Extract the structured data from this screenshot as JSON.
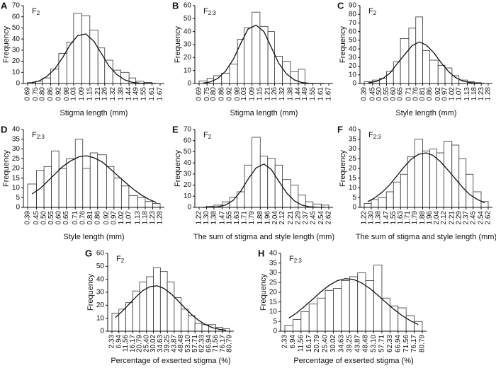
{
  "chart_data": [
    {
      "type": "histogram",
      "panel": "A",
      "subtitle": {
        "base": "F",
        "sub": "2"
      },
      "xlabel": "Stigma length (mm)",
      "ylabel": "Frequency",
      "bins": [
        0.69,
        0.75,
        {
          "value": 0.8,
          "label": "0.80"
        },
        0.86,
        0.92,
        0.98,
        1.03,
        1.09,
        1.15,
        1.21,
        1.26,
        1.32,
        1.38,
        1.44,
        1.49,
        1.55,
        1.61,
        1.67
      ],
      "counts": [
        1,
        2,
        5,
        13,
        27,
        37,
        63,
        61,
        48,
        32,
        21,
        12,
        10,
        5,
        2,
        1,
        0
      ],
      "curve": [
        0.8,
        2.3,
        6.1,
        13,
        23.5,
        35,
        43,
        44.6,
        38,
        27,
        16,
        8,
        3.2,
        1,
        0.3,
        0.1,
        0
      ],
      "ylim": [
        0,
        70
      ],
      "yticks": [
        0,
        10,
        20,
        30,
        40,
        50,
        60,
        70
      ],
      "bar_color": "#ffffff",
      "edge_color": "#333333",
      "line_color": "#111111"
    },
    {
      "type": "histogram",
      "panel": "B",
      "subtitle": {
        "base": "F",
        "sub": "2:3"
      },
      "xlabel": "Stigma length (mm)",
      "ylabel": "Frequency",
      "bins": [
        0.69,
        0.75,
        {
          "value": 0.8,
          "label": "0.80"
        },
        0.86,
        0.92,
        0.98,
        1.03,
        1.09,
        1.15,
        1.21,
        1.26,
        1.32,
        1.38,
        1.44,
        1.49,
        1.55,
        1.61,
        1.67
      ],
      "counts": [
        2,
        4,
        6,
        8,
        15,
        34,
        43,
        55,
        44,
        40,
        21,
        17,
        9,
        11,
        0,
        0,
        0
      ],
      "curve": [
        0.3,
        1.2,
        3.8,
        9.5,
        19,
        31,
        42,
        45,
        40,
        28,
        16,
        7.5,
        2.8,
        0.8,
        0.2,
        0,
        0
      ],
      "ylim": [
        0,
        60
      ],
      "yticks": [
        0,
        10,
        20,
        30,
        40,
        50,
        60
      ],
      "bar_color": "#ffffff",
      "edge_color": "#333333",
      "line_color": "#111111"
    },
    {
      "type": "histogram",
      "panel": "C",
      "subtitle": {
        "base": "F",
        "sub": "2"
      },
      "xlabel": "Style length (mm)",
      "ylabel": "Frequency",
      "bins": [
        0.39,
        0.45,
        {
          "value": 0.5,
          "label": "0.50"
        },
        0.55,
        {
          "value": 0.6,
          "label": "0.60"
        },
        0.65,
        0.71,
        0.76,
        0.81,
        0.86,
        0.92,
        0.97,
        1.02,
        1.07,
        1.13,
        1.18,
        1.23,
        1.28
      ],
      "counts": [
        2,
        4,
        6,
        14,
        25,
        52,
        64,
        77,
        38,
        27,
        21,
        18,
        9,
        4,
        2,
        1,
        0
      ],
      "curve": [
        0.8,
        2.3,
        5.9,
        12,
        22.5,
        33.4,
        43.9,
        48,
        44.6,
        35.5,
        23.5,
        13.8,
        7,
        2.8,
        1,
        0.3,
        0.1
      ],
      "ylim": [
        0,
        90
      ],
      "yticks": [
        0,
        10,
        20,
        30,
        40,
        50,
        60,
        70,
        80,
        90
      ],
      "bar_color": "#ffffff",
      "edge_color": "#333333",
      "line_color": "#111111"
    },
    {
      "type": "histogram",
      "panel": "D",
      "subtitle": {
        "base": "F",
        "sub": "2:3"
      },
      "xlabel": "Style length (mm)",
      "ylabel": "Frequency",
      "bins": [
        0.39,
        0.45,
        {
          "value": 0.5,
          "label": "0.50"
        },
        0.55,
        {
          "value": 0.6,
          "label": "0.60"
        },
        0.65,
        0.71,
        0.76,
        0.81,
        0.86,
        0.92,
        0.97,
        1.02,
        1.07,
        1.13,
        1.18,
        1.23,
        1.28
      ],
      "counts": [
        12,
        19,
        21,
        29,
        20,
        25,
        35,
        20,
        28,
        27,
        21,
        15,
        11,
        6,
        5,
        3,
        2
      ],
      "curve": [
        6.9,
        9.8,
        13.5,
        17.2,
        21,
        23.9,
        26,
        26.5,
        25.5,
        23.4,
        19.8,
        16.3,
        12.9,
        9.3,
        6.3,
        4.1,
        2.5
      ],
      "ylim": [
        0,
        40
      ],
      "yticks": [
        0,
        5,
        10,
        15,
        20,
        25,
        30,
        35,
        40
      ],
      "bar_color": "#ffffff",
      "edge_color": "#333333",
      "line_color": "#111111"
    },
    {
      "type": "histogram",
      "panel": "E",
      "subtitle": {
        "base": "F",
        "sub": "2"
      },
      "xlabel": "The sum of stigma and style length (mm)",
      "ylabel": "Frequency",
      "bins": [
        1.22,
        {
          "value": 1.3,
          "label": "1.30"
        },
        1.38,
        1.47,
        1.55,
        1.63,
        1.71,
        1.79,
        1.88,
        1.96,
        2.04,
        2.12,
        2.21,
        2.29,
        2.37,
        2.45,
        2.54,
        2.62
      ],
      "counts": [
        0,
        1,
        2,
        5,
        9,
        14,
        38,
        63,
        46,
        44,
        38,
        25,
        20,
        11,
        5,
        3,
        2
      ],
      "curve": [
        0,
        0.1,
        0.6,
        2.2,
        6.4,
        14.6,
        25.5,
        35.5,
        39,
        34,
        23.6,
        13,
        5.7,
        2,
        0.6,
        0.1,
        0
      ],
      "ylim": [
        0,
        70
      ],
      "yticks": [
        0,
        10,
        20,
        30,
        40,
        50,
        60,
        70
      ],
      "bar_color": "#ffffff",
      "edge_color": "#333333",
      "line_color": "#111111"
    },
    {
      "type": "histogram",
      "panel": "F",
      "subtitle": {
        "base": "F",
        "sub": "2:3"
      },
      "xlabel": "The sum of stigma and style length (mm)",
      "ylabel": "Frequency",
      "bins": [
        1.22,
        {
          "value": 1.3,
          "label": "1.30"
        },
        1.38,
        1.47,
        1.55,
        1.63,
        1.71,
        1.79,
        1.88,
        1.96,
        2.04,
        2.12,
        2.21,
        2.29,
        2.37,
        2.45,
        2.54,
        2.62
      ],
      "counts": [
        2,
        4,
        5,
        8,
        13,
        17,
        26,
        35,
        29,
        30,
        28,
        34,
        32,
        25,
        17,
        8,
        3
      ],
      "curve": [
        2.9,
        4.9,
        7.9,
        11.7,
        16.2,
        20.8,
        24.7,
        27.3,
        28,
        26.6,
        23.5,
        19.2,
        14.6,
        10.3,
        6.6,
        4.1,
        2.3
      ],
      "ylim": [
        0,
        40
      ],
      "yticks": [
        0,
        5,
        10,
        15,
        20,
        25,
        30,
        35,
        40
      ],
      "bar_color": "#ffffff",
      "edge_color": "#333333",
      "line_color": "#111111"
    },
    {
      "type": "histogram",
      "panel": "G",
      "subtitle": {
        "base": "F",
        "sub": "2"
      },
      "xlabel": "Percentage of exserted stigma (%)",
      "ylabel": "Frequency",
      "bins": [
        2.33,
        6.94,
        11.56,
        16.17,
        20.79,
        {
          "value": 25.4,
          "label": "25.40"
        },
        30.02,
        34.63,
        39.25,
        43.87,
        48.48,
        {
          "value": 53.1,
          "label": "53.10"
        },
        57.71,
        62.33,
        66.94,
        71.56,
        76.17,
        80.79
      ],
      "counts": [
        14,
        17,
        22,
        31,
        38,
        42,
        49,
        46,
        38,
        26,
        17,
        12,
        6,
        5,
        5,
        3,
        2
      ],
      "curve": [
        10.6,
        15.4,
        21,
        26.6,
        31.4,
        34.3,
        35,
        33,
        29,
        23.7,
        18.1,
        12.9,
        8.4,
        5.1,
        2.8,
        1.5,
        0.7
      ],
      "ylim": [
        0,
        60
      ],
      "yticks": [
        0,
        10,
        20,
        30,
        40,
        50,
        60
      ],
      "bar_color": "#ffffff",
      "edge_color": "#333333",
      "line_color": "#111111"
    },
    {
      "type": "histogram",
      "panel": "H",
      "subtitle": {
        "base": "F",
        "sub": "2:3"
      },
      "xlabel": "Percentage of exserted stigma (%)",
      "ylabel": "Frequency",
      "bins": [
        2.33,
        6.94,
        11.56,
        16.17,
        20.79,
        {
          "value": 25.4,
          "label": "25.40"
        },
        30.02,
        34.63,
        39.25,
        43.87,
        48.48,
        {
          "value": 53.1,
          "label": "53.10"
        },
        57.71,
        62.33,
        66.94,
        71.56,
        76.17,
        80.79
      ],
      "counts": [
        3,
        6,
        10,
        14,
        17,
        21,
        22,
        26,
        28,
        30,
        26,
        34,
        17,
        13,
        12,
        8,
        5
      ],
      "curve": [
        6.7,
        9.5,
        13,
        16.6,
        20.4,
        23.6,
        26,
        27,
        26.6,
        24.8,
        22,
        18.5,
        14.8,
        11.2,
        8,
        5.4,
        3.4
      ],
      "ylim": [
        0,
        40
      ],
      "yticks": [
        0,
        5,
        10,
        15,
        20,
        25,
        30,
        35,
        40
      ],
      "bar_color": "#ffffff",
      "edge_color": "#333333",
      "line_color": "#111111"
    }
  ]
}
